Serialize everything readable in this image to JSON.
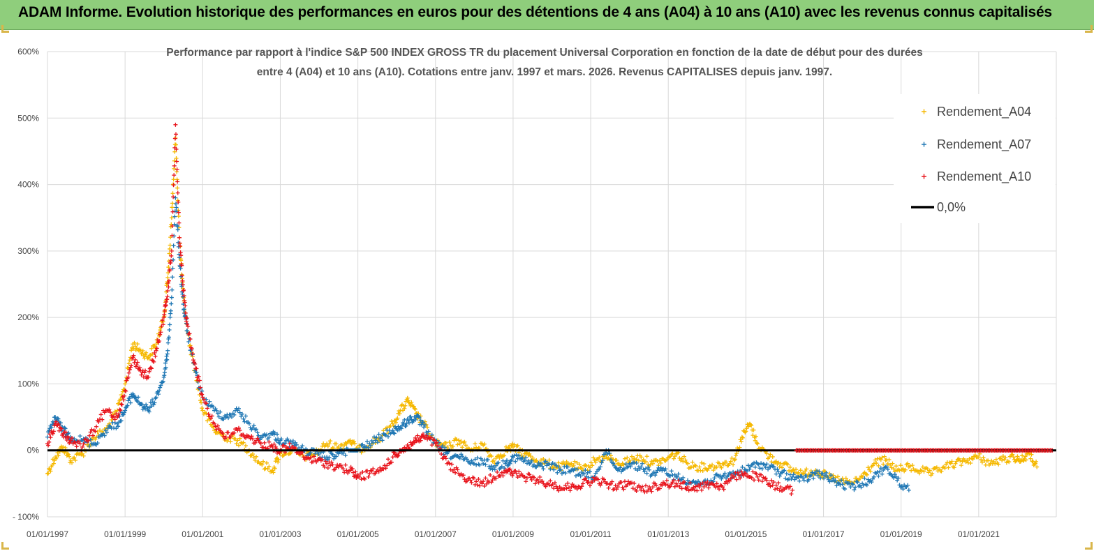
{
  "banner": {
    "title": "ADAM Informe. Evolution historique des performances en euros pour des détentions de 4 ans (A04) à 10 ans (A10) avec les revenus connus capitalisés"
  },
  "chart_data": {
    "type": "scatter",
    "title_line1": "Performance par rapport à l'indice S&P 500 INDEX GROSS TR  du placement Universal Corporation en fonction de la date de début pour des durées",
    "title_line2": "entre 4 (A04) et 10 ans (A10). Cotations entre janv. 1997 et mars. 2026. Revenus CAPITALISES depuis janv. 1997.",
    "xlabel": "",
    "ylabel": "",
    "xlim": [
      1997.0,
      2023.0
    ],
    "ylim": [
      -100,
      600
    ],
    "y_ticks": [
      {
        "value": 600,
        "label": "600%"
      },
      {
        "value": 500,
        "label": "500%"
      },
      {
        "value": 400,
        "label": "400%"
      },
      {
        "value": 300,
        "label": "300%"
      },
      {
        "value": 200,
        "label": "200%"
      },
      {
        "value": 100,
        "label": "100%"
      },
      {
        "value": 0,
        "label": "0%"
      },
      {
        "value": -100,
        "label": "- 100%"
      }
    ],
    "x_ticks": [
      {
        "value": 1997,
        "label": "01/01/1997"
      },
      {
        "value": 1999,
        "label": "01/01/1999"
      },
      {
        "value": 2001,
        "label": "01/01/2001"
      },
      {
        "value": 2003,
        "label": "01/01/2003"
      },
      {
        "value": 2005,
        "label": "01/01/2005"
      },
      {
        "value": 2007,
        "label": "01/01/2007"
      },
      {
        "value": 2009,
        "label": "01/01/2009"
      },
      {
        "value": 2011,
        "label": "01/01/2011"
      },
      {
        "value": 2013,
        "label": "01/01/2013"
      },
      {
        "value": 2015,
        "label": "01/01/2015"
      },
      {
        "value": 2017,
        "label": "01/01/2017"
      },
      {
        "value": 2019,
        "label": "01/01/2019"
      },
      {
        "value": 2021,
        "label": "01/01/2021"
      }
    ],
    "grid": true,
    "legend_position": "top-right",
    "series": [
      {
        "name": "Rendement_A04",
        "color": "#f5b800",
        "x": [
          1997.0,
          1997.2,
          1997.4,
          1997.6,
          1997.9,
          1998.2,
          1998.5,
          1998.8,
          1999.0,
          1999.2,
          1999.4,
          1999.6,
          1999.8,
          2000.0,
          2000.1,
          2000.2,
          2000.3,
          2000.4,
          2000.5,
          2000.6,
          2000.8,
          2001.0,
          2001.3,
          2001.6,
          2001.9,
          2002.2,
          2002.5,
          2002.8,
          2003.0,
          2003.3,
          2003.6,
          2003.9,
          2004.2,
          2004.5,
          2004.8,
          2005.0,
          2005.3,
          2005.6,
          2005.9,
          2006.1,
          2006.3,
          2006.5,
          2006.7,
          2007.0,
          2007.3,
          2007.6,
          2007.9,
          2008.2,
          2008.5,
          2008.8,
          2009.0,
          2009.3,
          2009.6,
          2009.9,
          2010.2,
          2010.5,
          2010.8,
          2011.1,
          2011.4,
          2011.7,
          2012.0,
          2012.3,
          2012.6,
          2012.9,
          2013.2,
          2013.5,
          2013.8,
          2014.1,
          2014.4,
          2014.7,
          2014.9,
          2015.1,
          2015.3,
          2015.6,
          2015.9,
          2016.2,
          2016.5,
          2016.8,
          2017.1,
          2017.4,
          2017.7,
          2018.0,
          2018.3,
          2018.6,
          2018.9,
          2019.2,
          2019.5,
          2019.8,
          2020.1,
          2020.4,
          2020.7,
          2021.0,
          2021.3,
          2021.6,
          2021.9,
          2022.1,
          2022.3,
          2022.5
        ],
        "y": [
          -35,
          -10,
          5,
          -15,
          -5,
          20,
          30,
          60,
          100,
          160,
          150,
          140,
          160,
          200,
          260,
          350,
          470,
          320,
          230,
          180,
          120,
          60,
          30,
          20,
          15,
          0,
          -20,
          -30,
          -5,
          0,
          -10,
          -5,
          10,
          5,
          15,
          0,
          10,
          20,
          40,
          60,
          75,
          55,
          40,
          10,
          5,
          15,
          0,
          10,
          -15,
          0,
          5,
          -5,
          -15,
          -20,
          -25,
          -20,
          -30,
          -15,
          -10,
          -20,
          -15,
          -10,
          -20,
          -15,
          -5,
          -20,
          -25,
          -25,
          -20,
          -15,
          20,
          40,
          10,
          -10,
          -20,
          -30,
          -35,
          -30,
          -40,
          -45,
          -50,
          -40,
          -20,
          -15,
          -30,
          -25,
          -30,
          -35,
          -25,
          -20,
          -15,
          -10,
          -20,
          -15,
          -10,
          -15,
          -5,
          -25
        ]
      },
      {
        "name": "Rendement_A07",
        "color": "#1f77b4",
        "x": [
          1997.0,
          1997.2,
          1997.4,
          1997.6,
          1997.9,
          1998.2,
          1998.5,
          1998.8,
          1999.0,
          1999.2,
          1999.4,
          1999.6,
          1999.8,
          2000.0,
          2000.1,
          2000.2,
          2000.3,
          2000.4,
          2000.5,
          2000.6,
          2000.8,
          2001.0,
          2001.3,
          2001.6,
          2001.9,
          2002.2,
          2002.5,
          2002.8,
          2003.0,
          2003.3,
          2003.6,
          2003.9,
          2004.2,
          2004.5,
          2004.8,
          2005.0,
          2005.3,
          2005.6,
          2005.9,
          2006.1,
          2006.3,
          2006.5,
          2006.7,
          2007.0,
          2007.3,
          2007.6,
          2007.9,
          2008.2,
          2008.5,
          2008.8,
          2009.0,
          2009.3,
          2009.6,
          2009.9,
          2010.2,
          2010.5,
          2010.8,
          2011.1,
          2011.4,
          2011.7,
          2012.0,
          2012.3,
          2012.6,
          2012.9,
          2013.2,
          2013.5,
          2013.8,
          2014.1,
          2014.4,
          2014.7,
          2015.0,
          2015.3,
          2015.6,
          2015.9,
          2016.2,
          2016.5,
          2016.8,
          2017.1,
          2017.4,
          2017.7,
          2018.0,
          2018.3,
          2018.6,
          2018.9,
          2019.2
        ],
        "y": [
          20,
          50,
          30,
          20,
          15,
          10,
          30,
          40,
          60,
          85,
          70,
          60,
          80,
          110,
          150,
          230,
          380,
          290,
          220,
          180,
          120,
          80,
          60,
          50,
          60,
          40,
          20,
          25,
          15,
          10,
          0,
          -5,
          -10,
          -5,
          0,
          0,
          10,
          20,
          30,
          35,
          45,
          50,
          35,
          10,
          -5,
          -10,
          -20,
          -15,
          -25,
          -20,
          -10,
          -15,
          -25,
          -20,
          -30,
          -30,
          -35,
          -40,
          0,
          -30,
          -20,
          -25,
          -35,
          -30,
          -40,
          -45,
          -50,
          -45,
          -40,
          -35,
          -30,
          -20,
          -25,
          -35,
          -40,
          -45,
          -35,
          -40,
          -50,
          -55,
          -50,
          -40,
          -25,
          -45,
          -60
        ]
      },
      {
        "name": "Rendement_A10",
        "color": "#e8141c",
        "x": [
          1997.0,
          1997.2,
          1997.4,
          1997.6,
          1997.9,
          1998.2,
          1998.5,
          1998.8,
          1999.0,
          1999.2,
          1999.4,
          1999.6,
          1999.8,
          2000.0,
          2000.1,
          2000.2,
          2000.3,
          2000.4,
          2000.5,
          2000.6,
          2000.8,
          2001.0,
          2001.3,
          2001.6,
          2001.9,
          2002.2,
          2002.5,
          2002.8,
          2003.0,
          2003.3,
          2003.6,
          2003.9,
          2004.2,
          2004.5,
          2004.8,
          2005.0,
          2005.3,
          2005.6,
          2005.9,
          2006.1,
          2006.3,
          2006.5,
          2006.7,
          2007.0,
          2007.3,
          2007.6,
          2007.9,
          2008.2,
          2008.5,
          2008.8,
          2009.0,
          2009.3,
          2009.6,
          2009.9,
          2010.2,
          2010.5,
          2010.8,
          2011.1,
          2011.4,
          2011.7,
          2012.0,
          2012.3,
          2012.6,
          2012.9,
          2013.2,
          2013.5,
          2013.8,
          2014.1,
          2014.4,
          2014.7,
          2015.0,
          2015.3,
          2015.6,
          2015.9,
          2016.2
        ],
        "y": [
          10,
          40,
          25,
          15,
          5,
          30,
          60,
          50,
          90,
          140,
          120,
          110,
          150,
          200,
          240,
          300,
          490,
          320,
          240,
          190,
          130,
          80,
          40,
          20,
          30,
          20,
          10,
          5,
          0,
          5,
          -10,
          -15,
          -20,
          -25,
          -30,
          -40,
          -35,
          -30,
          -10,
          0,
          5,
          15,
          20,
          10,
          -20,
          -35,
          -45,
          -50,
          -40,
          -30,
          -35,
          -40,
          -45,
          -50,
          -55,
          -55,
          -50,
          -45,
          -50,
          -55,
          -50,
          -60,
          -55,
          -50,
          -50,
          -55,
          -55,
          -50,
          -55,
          -40,
          -35,
          -40,
          -50,
          -55,
          -60
        ]
      },
      {
        "name": "Rendement_A10 (niveau 0%)",
        "color": "#e8141c",
        "x": [
          2016.3,
          2016.6,
          2016.9,
          2017.2,
          2017.5,
          2017.8,
          2018.1,
          2018.4,
          2018.7,
          2019.0,
          2019.3,
          2019.6,
          2019.9,
          2020.2,
          2020.5,
          2020.8,
          2021.1,
          2021.4,
          2021.7,
          2022.0,
          2022.3,
          2022.6,
          2022.9
        ],
        "y": [
          0,
          0,
          0,
          0,
          0,
          0,
          0,
          0,
          0,
          0,
          0,
          0,
          0,
          0,
          0,
          0,
          0,
          0,
          0,
          0,
          0,
          0,
          0
        ]
      }
    ],
    "reference_line": {
      "name": "0,0%",
      "value": 0,
      "color": "#000000"
    },
    "legend": [
      {
        "label": "Rendement_A04",
        "color": "#f5b800",
        "marker": "+"
      },
      {
        "label": "Rendement_A07",
        "color": "#1f77b4",
        "marker": "+"
      },
      {
        "label": "Rendement_A10",
        "color": "#e8141c",
        "marker": "+"
      },
      {
        "label": "0,0%",
        "color": "#000000",
        "marker": "line"
      }
    ]
  }
}
